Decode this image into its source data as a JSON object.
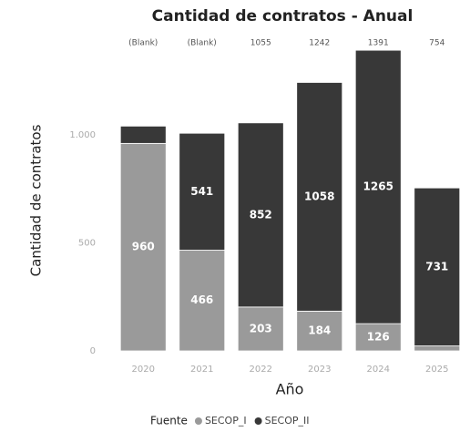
{
  "chart_data": {
    "type": "stacked_bar",
    "title": "Cantidad de contratos - Anual",
    "x_label": "Año",
    "y_label": "Cantidad de contratos",
    "categories": [
      "2020",
      "2021",
      "2022",
      "2023",
      "2024",
      "2025"
    ],
    "series": [
      {
        "name": "SECOP_I",
        "color": "#9a9a9a",
        "values": [
          960,
          466,
          203,
          184,
          126,
          23
        ]
      },
      {
        "name": "SECOP_II",
        "color": "#383838",
        "values": [
          80,
          541,
          852,
          1058,
          1265,
          731
        ]
      }
    ],
    "top_labels": [
      "(Blank)",
      "(Blank)",
      "1055",
      "1242",
      "1391",
      "754"
    ],
    "legend_title": "Fuente",
    "ylim": [
      0,
      1400
    ],
    "yticks": [
      0,
      500,
      {
        "value": 1000,
        "label": "1.000"
      }
    ],
    "legend": "bottom"
  }
}
